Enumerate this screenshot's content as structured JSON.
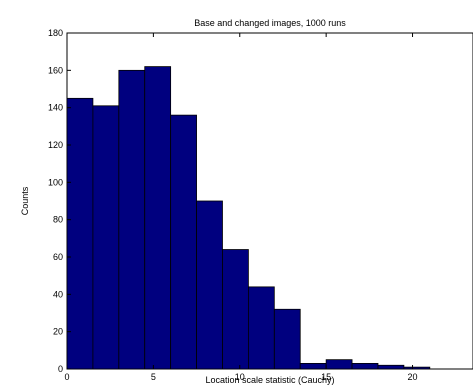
{
  "chart_data": {
    "type": "bar",
    "title": "Base and changed images, 1000 runs",
    "xlabel": "Location scale statistic (Cauchy)",
    "ylabel": "Counts",
    "bin_edges": [
      0,
      1.5,
      3,
      4.5,
      6,
      7.5,
      9,
      10.5,
      12,
      13.5,
      15,
      16.5,
      18,
      19.5,
      21,
      22.5
    ],
    "values": [
      145,
      141,
      160,
      162,
      136,
      90,
      64,
      44,
      32,
      3,
      5,
      3,
      2,
      1,
      0
    ],
    "xlim": [
      0,
      23.5
    ],
    "ylim": [
      0,
      180
    ],
    "xticks": [
      0,
      5,
      10,
      15,
      20
    ],
    "yticks": [
      0,
      20,
      40,
      60,
      80,
      100,
      120,
      140,
      160,
      180
    ],
    "grid": false,
    "bar_color": "#00007f",
    "edge_color": "#000000"
  }
}
